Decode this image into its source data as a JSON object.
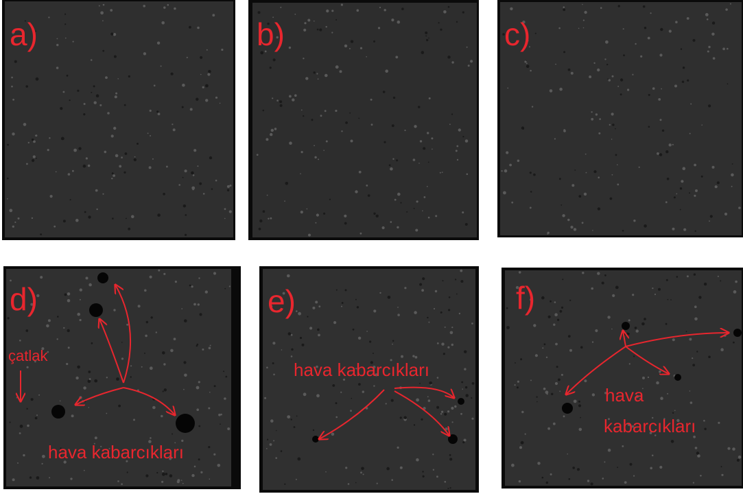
{
  "panels": [
    {
      "label": "a)"
    },
    {
      "label": "b)"
    },
    {
      "label": "c)"
    },
    {
      "label": "d)",
      "annotations": [
        "çatlak",
        "hava kabarcıkları"
      ]
    },
    {
      "label": "e)",
      "annotations": [
        "hava kabarcıkları"
      ]
    },
    {
      "label": "f)",
      "annotations": [
        "hava",
        "kabarcıkları"
      ]
    }
  ]
}
